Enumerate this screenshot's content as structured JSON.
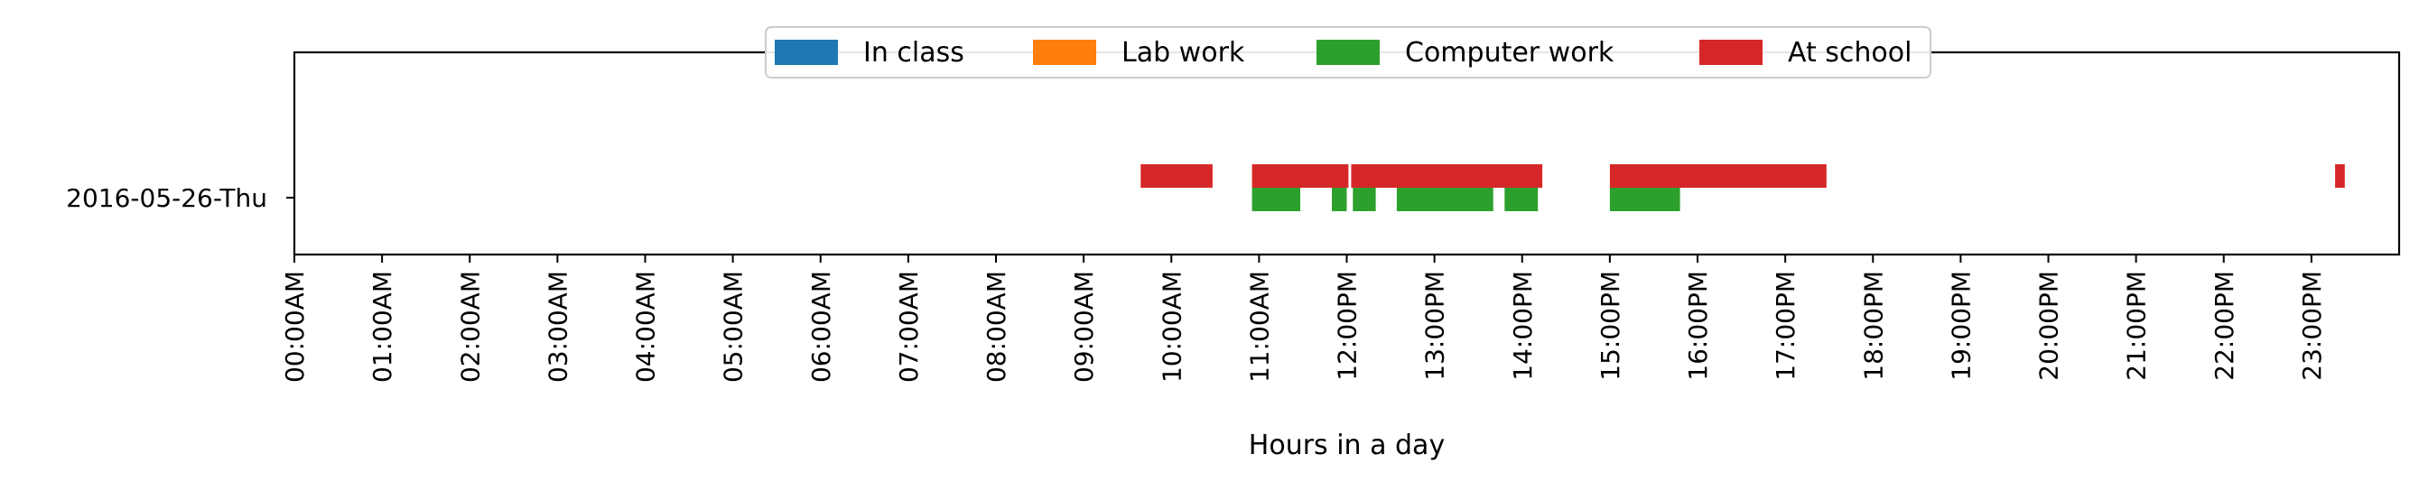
{
  "chart_data": {
    "type": "timeline",
    "xlabel": "Hours in a day",
    "ylabel": "",
    "xlim": [
      0,
      24
    ],
    "grid": false,
    "legend_placement": "top-center",
    "y_categories": [
      "2016-05-26-Thu"
    ],
    "x_ticks": [
      {
        "value": 0,
        "label": "00:00AM"
      },
      {
        "value": 1,
        "label": "01:00AM"
      },
      {
        "value": 2,
        "label": "02:00AM"
      },
      {
        "value": 3,
        "label": "03:00AM"
      },
      {
        "value": 4,
        "label": "04:00AM"
      },
      {
        "value": 5,
        "label": "05:00AM"
      },
      {
        "value": 6,
        "label": "06:00AM"
      },
      {
        "value": 7,
        "label": "07:00AM"
      },
      {
        "value": 8,
        "label": "08:00AM"
      },
      {
        "value": 9,
        "label": "09:00AM"
      },
      {
        "value": 10,
        "label": "10:00AM"
      },
      {
        "value": 11,
        "label": "11:00AM"
      },
      {
        "value": 12,
        "label": "12:00PM"
      },
      {
        "value": 13,
        "label": "13:00PM"
      },
      {
        "value": 14,
        "label": "14:00PM"
      },
      {
        "value": 15,
        "label": "15:00PM"
      },
      {
        "value": 16,
        "label": "16:00PM"
      },
      {
        "value": 17,
        "label": "17:00PM"
      },
      {
        "value": 18,
        "label": "18:00PM"
      },
      {
        "value": 19,
        "label": "19:00PM"
      },
      {
        "value": 20,
        "label": "20:00PM"
      },
      {
        "value": 21,
        "label": "21:00PM"
      },
      {
        "value": 22,
        "label": "22:00PM"
      },
      {
        "value": 23,
        "label": "23:00PM"
      }
    ],
    "series": [
      {
        "name": "In class",
        "color": "#1f77b4",
        "intervals": []
      },
      {
        "name": "Lab work",
        "color": "#ff7f0e",
        "intervals": []
      },
      {
        "name": "Computer work",
        "color": "#2ca02c",
        "intervals": [
          [
            10.92,
            11.47
          ],
          [
            11.83,
            12.0
          ],
          [
            12.07,
            12.33
          ],
          [
            12.57,
            13.67
          ],
          [
            13.8,
            14.18
          ],
          [
            15.0,
            15.8
          ]
        ]
      },
      {
        "name": "At school",
        "color": "#d62728",
        "intervals": [
          [
            9.65,
            10.47
          ],
          [
            10.92,
            12.02
          ],
          [
            12.05,
            14.23
          ],
          [
            15.0,
            17.47
          ],
          [
            23.27,
            23.38
          ]
        ]
      }
    ]
  }
}
